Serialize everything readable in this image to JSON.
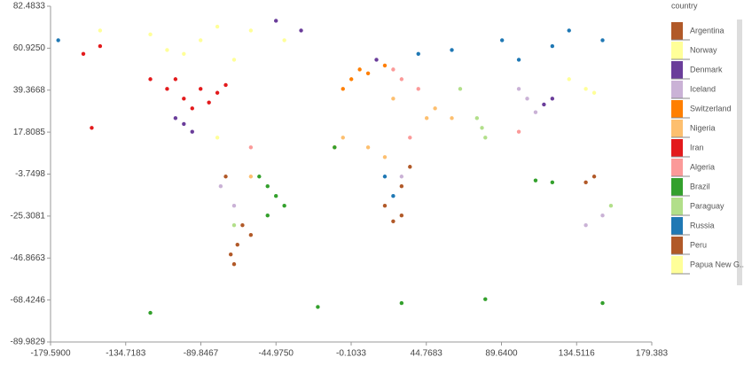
{
  "chart_data": {
    "type": "scatter",
    "legend_title": "country",
    "xlim": [
      -179.59,
      179.383
    ],
    "ylim": [
      -89.9829,
      82.4833
    ],
    "xticks": [
      {
        "value": -179.59,
        "label": "-179.5900"
      },
      -134.7183,
      -89.8467,
      {
        "value": -44.975,
        "label": "-44.9750"
      },
      -0.1033,
      44.7683,
      {
        "value": 89.64,
        "label": "89.6400"
      },
      134.5116,
      179.383
    ],
    "yticks": [
      82.4833,
      {
        "value": 60.925,
        "label": "60.9250"
      },
      {
        "value": 39.3668,
        "label": "39.3668"
      },
      17.8085,
      {
        "value": -3.7498,
        "label": "-3.7498"
      },
      -25.3081,
      -46.8663,
      -68.4246,
      -89.9829
    ],
    "series": [
      {
        "name": "Argentina",
        "color": "#b15928",
        "x": [
          -65,
          -68,
          -70,
          -60,
          25,
          30,
          20
        ],
        "y": [
          -30,
          -40,
          -50,
          -35,
          -28,
          -25,
          -20
        ]
      },
      {
        "name": "Norway",
        "color": "#ffff99",
        "x": [
          -110,
          -90,
          -70,
          -120,
          -80,
          -100,
          140,
          130
        ],
        "y": [
          60,
          65,
          55,
          68,
          72,
          58,
          40,
          45
        ]
      },
      {
        "name": "Denmark",
        "color": "#6a3d9a",
        "x": [
          -100,
          -95,
          -105,
          -45,
          -30,
          115,
          120,
          15
        ],
        "y": [
          22,
          18,
          25,
          75,
          70,
          32,
          35,
          55
        ]
      },
      {
        "name": "Iceland",
        "color": "#cab2d6",
        "x": [
          105,
          110,
          100,
          -78,
          -70,
          30,
          150,
          140
        ],
        "y": [
          35,
          28,
          40,
          -10,
          -20,
          -5,
          -25,
          -30
        ]
      },
      {
        "name": "Switzerland",
        "color": "#ff7f00",
        "x": [
          0,
          10,
          -5,
          20,
          5,
          -10
        ],
        "y": [
          45,
          48,
          40,
          52,
          50,
          10
        ]
      },
      {
        "name": "Nigeria",
        "color": "#fdbf6f",
        "x": [
          45,
          50,
          -5,
          10,
          25,
          60,
          -60,
          20
        ],
        "y": [
          25,
          30,
          15,
          10,
          35,
          25,
          -5,
          5
        ]
      },
      {
        "name": "Iran",
        "color": "#e31a1c",
        "x": [
          -120,
          -110,
          -100,
          -90,
          -80,
          -95,
          -75,
          -85,
          -150,
          -160,
          -155,
          -105
        ],
        "y": [
          45,
          40,
          35,
          40,
          38,
          30,
          42,
          33,
          62,
          58,
          20,
          45
        ]
      },
      {
        "name": "Algeria",
        "color": "#fb9a99",
        "x": [
          25,
          30,
          40,
          100,
          -60,
          35
        ],
        "y": [
          50,
          45,
          40,
          18,
          10,
          15
        ]
      },
      {
        "name": "Brazil",
        "color": "#33a02c",
        "x": [
          -50,
          -45,
          -55,
          -40,
          -50,
          110,
          120,
          -120,
          -20,
          30,
          80,
          150,
          -10
        ],
        "y": [
          -10,
          -15,
          -5,
          -20,
          -25,
          -7,
          -8,
          -75,
          -72,
          -70,
          -68,
          -70,
          10
        ]
      },
      {
        "name": "Paraguay",
        "color": "#b2df8a",
        "x": [
          78,
          75,
          65,
          80,
          155,
          -70
        ],
        "y": [
          20,
          25,
          40,
          15,
          -20,
          -30
        ]
      },
      {
        "name": "Russia",
        "color": "#1f78b4",
        "x": [
          60,
          90,
          120,
          150,
          40,
          100,
          20,
          25,
          -175,
          130
        ],
        "y": [
          60,
          65,
          62,
          65,
          58,
          55,
          -5,
          -15,
          65,
          70
        ]
      },
      {
        "name": "Peru",
        "color": "#b15928",
        "x": [
          -75,
          30,
          145,
          140,
          35,
          -72
        ],
        "y": [
          -5,
          -10,
          -5,
          -8,
          0,
          -45
        ]
      },
      {
        "name": "Papua New G...",
        "color": "#ffff99",
        "x": [
          -60,
          -40,
          -150,
          -80,
          145
        ],
        "y": [
          70,
          65,
          70,
          15,
          38
        ]
      }
    ]
  }
}
